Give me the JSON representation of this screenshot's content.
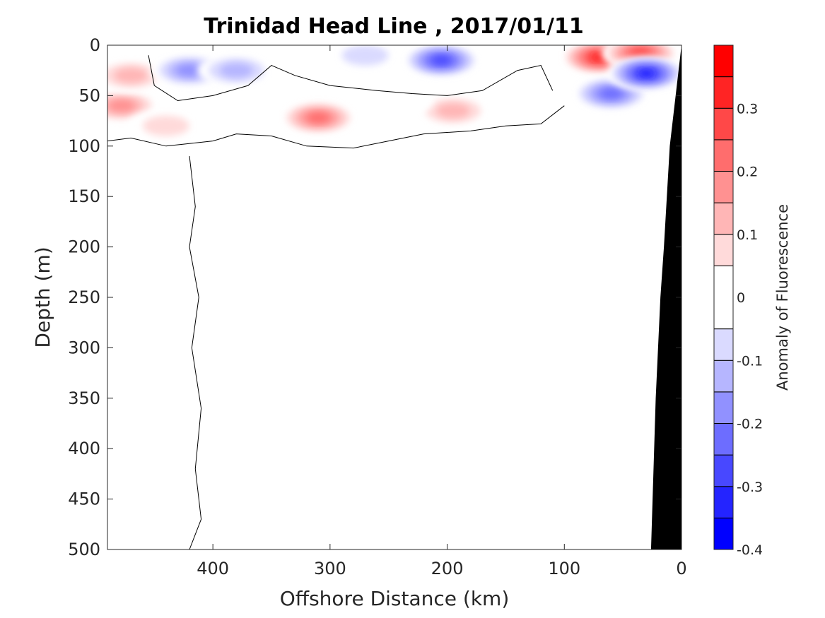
{
  "chart_data": {
    "type": "heatmap",
    "title": "Trinidad Head Line , 2017/01/11",
    "xlabel": "Offshore Distance (km)",
    "ylabel": "Depth (m)",
    "xlim": [
      490,
      0
    ],
    "ylim": [
      0,
      500
    ],
    "x_direction": "reversed",
    "y_direction": "reversed (depth increases downward)",
    "x_ticks": [
      400,
      300,
      200,
      100,
      0
    ],
    "x_tick_labels": [
      "400",
      "300",
      "200",
      "100",
      "0"
    ],
    "y_ticks": [
      0,
      50,
      100,
      150,
      200,
      250,
      300,
      350,
      400,
      450,
      500
    ],
    "y_tick_labels": [
      "0",
      "50",
      "100",
      "150",
      "200",
      "250",
      "300",
      "350",
      "400",
      "450",
      "500"
    ],
    "colorbar": {
      "label": "Anomaly of Fluorescence",
      "range": [
        -0.4,
        0.4
      ],
      "levels": [
        -0.4,
        -0.35,
        -0.3,
        -0.25,
        -0.2,
        -0.15,
        -0.1,
        -0.05,
        0.05,
        0.1,
        0.15,
        0.2,
        0.25,
        0.3,
        0.35,
        0.4
      ],
      "colors": [
        "#0000ff",
        "#2424ff",
        "#4848ff",
        "#6d6dff",
        "#9191ff",
        "#b6b6ff",
        "#dadaff",
        "#ffffff",
        "#ffdada",
        "#ffb6b6",
        "#ff9191",
        "#ff6d6d",
        "#ff4848",
        "#ff2424",
        "#ff0000"
      ],
      "ticks": [
        -0.4,
        -0.3,
        -0.2,
        -0.1,
        0,
        0.1,
        0.2,
        0.3
      ],
      "tick_labels": [
        "-0.4",
        "-0.3",
        "-0.2",
        "-0.1",
        "0",
        "0.1",
        "0.2",
        "0.3"
      ]
    },
    "background_value": -0.05,
    "bathymetry_color": "#000000",
    "bathymetry_profile": [
      [
        26,
        500
      ],
      [
        22,
        350
      ],
      [
        18,
        250
      ],
      [
        15,
        200
      ],
      [
        10,
        100
      ],
      [
        0,
        0
      ]
    ],
    "zero_contour_color": "#000000",
    "anomaly_features": [
      {
        "x": 478,
        "y": 60,
        "value": 0.2
      },
      {
        "x": 470,
        "y": 30,
        "value": 0.15
      },
      {
        "x": 440,
        "y": 80,
        "value": 0.1
      },
      {
        "x": 420,
        "y": 25,
        "value": -0.2
      },
      {
        "x": 380,
        "y": 25,
        "value": -0.15
      },
      {
        "x": 310,
        "y": 72,
        "value": 0.25
      },
      {
        "x": 270,
        "y": 10,
        "value": -0.1
      },
      {
        "x": 205,
        "y": 15,
        "value": -0.3
      },
      {
        "x": 195,
        "y": 65,
        "value": 0.15
      },
      {
        "x": 245,
        "y": 55,
        "value": 0.05
      },
      {
        "x": 70,
        "y": 12,
        "value": 0.35
      },
      {
        "x": 35,
        "y": 8,
        "value": 0.3
      },
      {
        "x": 60,
        "y": 48,
        "value": -0.25
      },
      {
        "x": 30,
        "y": 28,
        "value": -0.35
      }
    ]
  }
}
